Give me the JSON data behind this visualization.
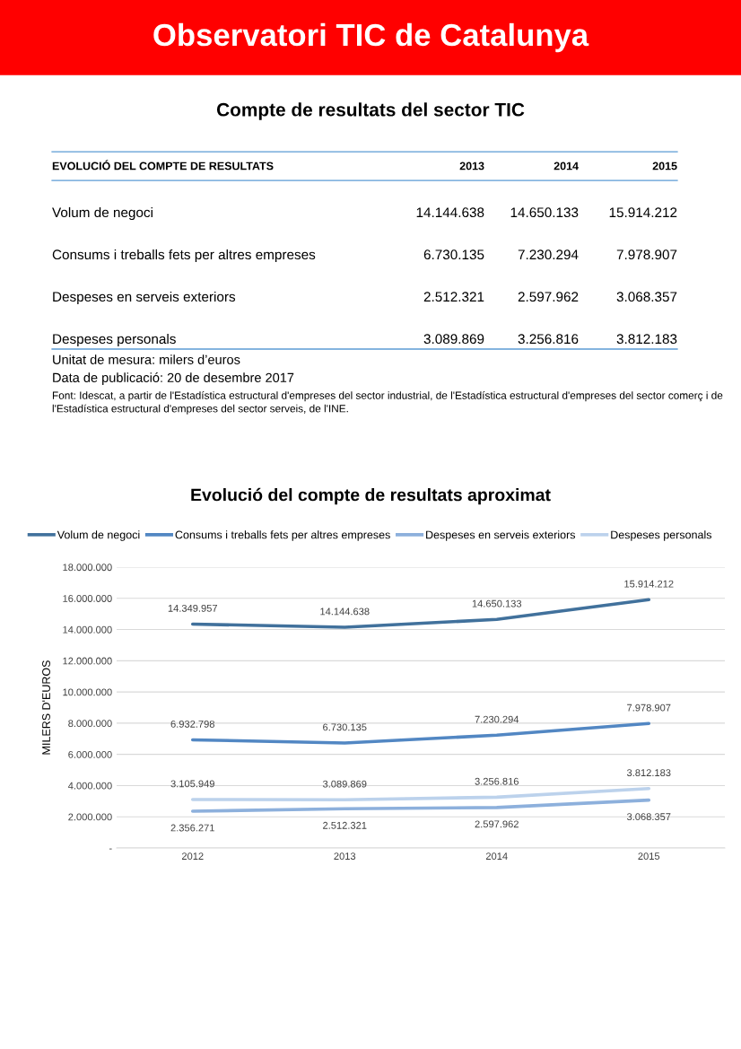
{
  "chart_data": [
    {
      "type": "other",
      "title": "Observatori TIC de Catalunya",
      "subtitle": "Compte de resultats del sector TIC",
      "annotations": [
        "EVOLUCIÓ DEL COMPTE DE RESULTATS",
        "2013",
        "2014",
        "2015",
        "Volum de negoci",
        "14.144.638",
        "14.650.133",
        "15.914.212",
        "Consums i treballs fets per altres empreses",
        "6.730.135",
        "7.230.294",
        "7.978.907",
        "Despeses en serveis exteriors",
        "2.512.321",
        "2.597.962",
        "3.068.357",
        "Despeses personals",
        "3.089.869",
        "3.256.816",
        "3.812.183",
        "Unitat de mesura: milers d’euros",
        "Data de publicació: 20 de desembre 2017",
        "Font: Idescat, a partir de l'Estadística estructural d'empreses del sector industrial, de l'Estadística estructural d'empreses del sector comerç i de l'Estadística estructural d'empreses del sector serveis, de l'INE."
      ]
    },
    {
      "type": "line",
      "title": "Evolució del compte de resultats aproximat",
      "ylabel": "MILERS D'EUROS",
      "categories": [
        "2012",
        "2013",
        "2014",
        "2015"
      ],
      "ylim": [
        0,
        18000000
      ],
      "yticks": [
        {
          "value": 0,
          "label": "-"
        },
        {
          "value": 2000000,
          "label": "2.000.000"
        },
        {
          "value": 4000000,
          "label": "4.000.000"
        },
        {
          "value": 6000000,
          "label": "6.000.000"
        },
        {
          "value": 8000000,
          "label": "8.000.000"
        },
        {
          "value": 10000000,
          "label": "10.000.000"
        },
        {
          "value": 12000000,
          "label": "12.000.000"
        },
        {
          "value": 14000000,
          "label": "14.000.000"
        },
        {
          "value": 16000000,
          "label": "16.000.000"
        },
        {
          "value": 18000000,
          "label": "18.000.000"
        }
      ],
      "grid": "y",
      "legend": "top",
      "marker": "none",
      "line_style": "solid",
      "series": [
        {
          "name": "Volum de negoci",
          "color": "#41719c",
          "values": [
            14349957,
            14144638,
            14650133,
            15914212
          ],
          "value_labels": [
            "14.349.957",
            "14.144.638",
            "14.650.133",
            "15.914.212"
          ]
        },
        {
          "name": "Consums i treballs fets per altres empreses",
          "color": "#5287c3",
          "values": [
            6932798,
            6730135,
            7230294,
            7978907
          ],
          "value_labels": [
            "6.932.798",
            "6.730.135",
            "7.230.294",
            "7.978.907"
          ]
        },
        {
          "name": "Despeses en serveis exteriors",
          "color": "#8db0dc",
          "values": [
            2356271,
            2512321,
            2597962,
            3068357
          ],
          "value_labels": [
            "2.356.271",
            "2.512.321",
            "2.597.962",
            "3.068.357"
          ]
        },
        {
          "name": "Despeses personals",
          "color": "#bcd2ec",
          "values": [
            3105949,
            3089869,
            3256816,
            3812183
          ],
          "value_labels": [
            "3.105.949",
            "3.089.869",
            "3.256.816",
            "3.812.183"
          ]
        }
      ]
    }
  ]
}
